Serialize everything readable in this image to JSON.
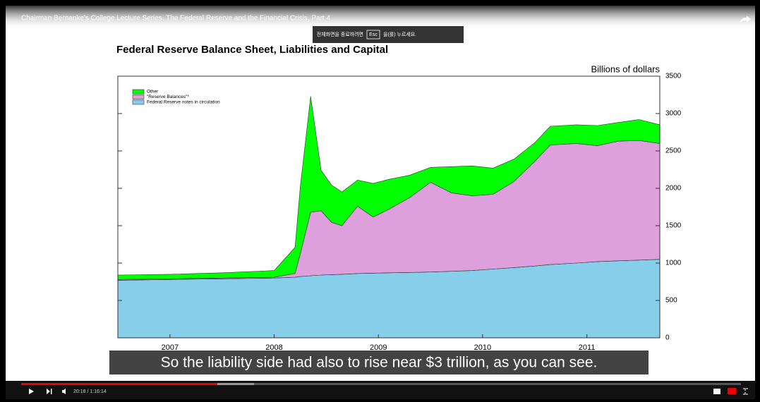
{
  "player": {
    "video_title": "Chairman Bernanke's College Lecture Series, The Federal Reserve and the Financial Crisis, Part 4",
    "fullscreen_notice": {
      "before": "전체화면을 종료하려면",
      "key": "Esc",
      "after": "을(를) 누르세요."
    },
    "caption": "So the liability side had also to rise near $3 trillion, as you can see.",
    "time": "20:18 / 1:16:14"
  },
  "chart_data": {
    "type": "area",
    "stacked": true,
    "title": "Federal Reserve Balance Sheet, Liabilities and Capital",
    "y_label": "Billions of dollars",
    "legend": "upper left",
    "x": [
      2007.0,
      2007.5,
      2008.0,
      2008.5,
      2008.7,
      2008.75,
      2008.85,
      2008.95,
      2009.05,
      2009.15,
      2009.3,
      2009.45,
      2009.6,
      2009.8,
      2010.0,
      2010.2,
      2010.4,
      2010.6,
      2010.8,
      2011.0,
      2011.15,
      2011.4,
      2011.6,
      2011.8,
      2012.0,
      2012.2
    ],
    "xlim": [
      2007.0,
      2012.2
    ],
    "xticks": [
      {
        "value": 2007.5,
        "label": "2007"
      },
      {
        "value": 2008.5,
        "label": "2008"
      },
      {
        "value": 2009.5,
        "label": "2009"
      },
      {
        "value": 2010.5,
        "label": "2010"
      },
      {
        "value": 2011.5,
        "label": "2011"
      }
    ],
    "ylim": [
      0,
      3500
    ],
    "yticks": [
      0,
      500,
      1000,
      1500,
      2000,
      2500,
      3000,
      3500
    ],
    "series": [
      {
        "name": "Federal Reserve notes in circulation",
        "color": "#87ceeb",
        "values": [
          770,
          780,
          790,
          800,
          810,
          820,
          830,
          840,
          845,
          850,
          860,
          865,
          870,
          875,
          880,
          890,
          900,
          920,
          940,
          960,
          980,
          1000,
          1020,
          1030,
          1040,
          1050
        ]
      },
      {
        "name": "\"Reserve Balances\"*",
        "color": "#dda0dd",
        "values": [
          10,
          10,
          10,
          10,
          50,
          300,
          850,
          860,
          700,
          650,
          900,
          750,
          850,
          1000,
          1200,
          1050,
          1000,
          1000,
          1150,
          1400,
          1600,
          1600,
          1550,
          1600,
          1600,
          1550
        ]
      },
      {
        "name": "Other",
        "color": "#00ff00",
        "values": [
          60,
          60,
          70,
          90,
          350,
          900,
          1550,
          540,
          500,
          450,
          350,
          450,
          400,
          300,
          200,
          350,
          400,
          350,
          300,
          250,
          250,
          250,
          270,
          250,
          280,
          250
        ]
      }
    ]
  }
}
